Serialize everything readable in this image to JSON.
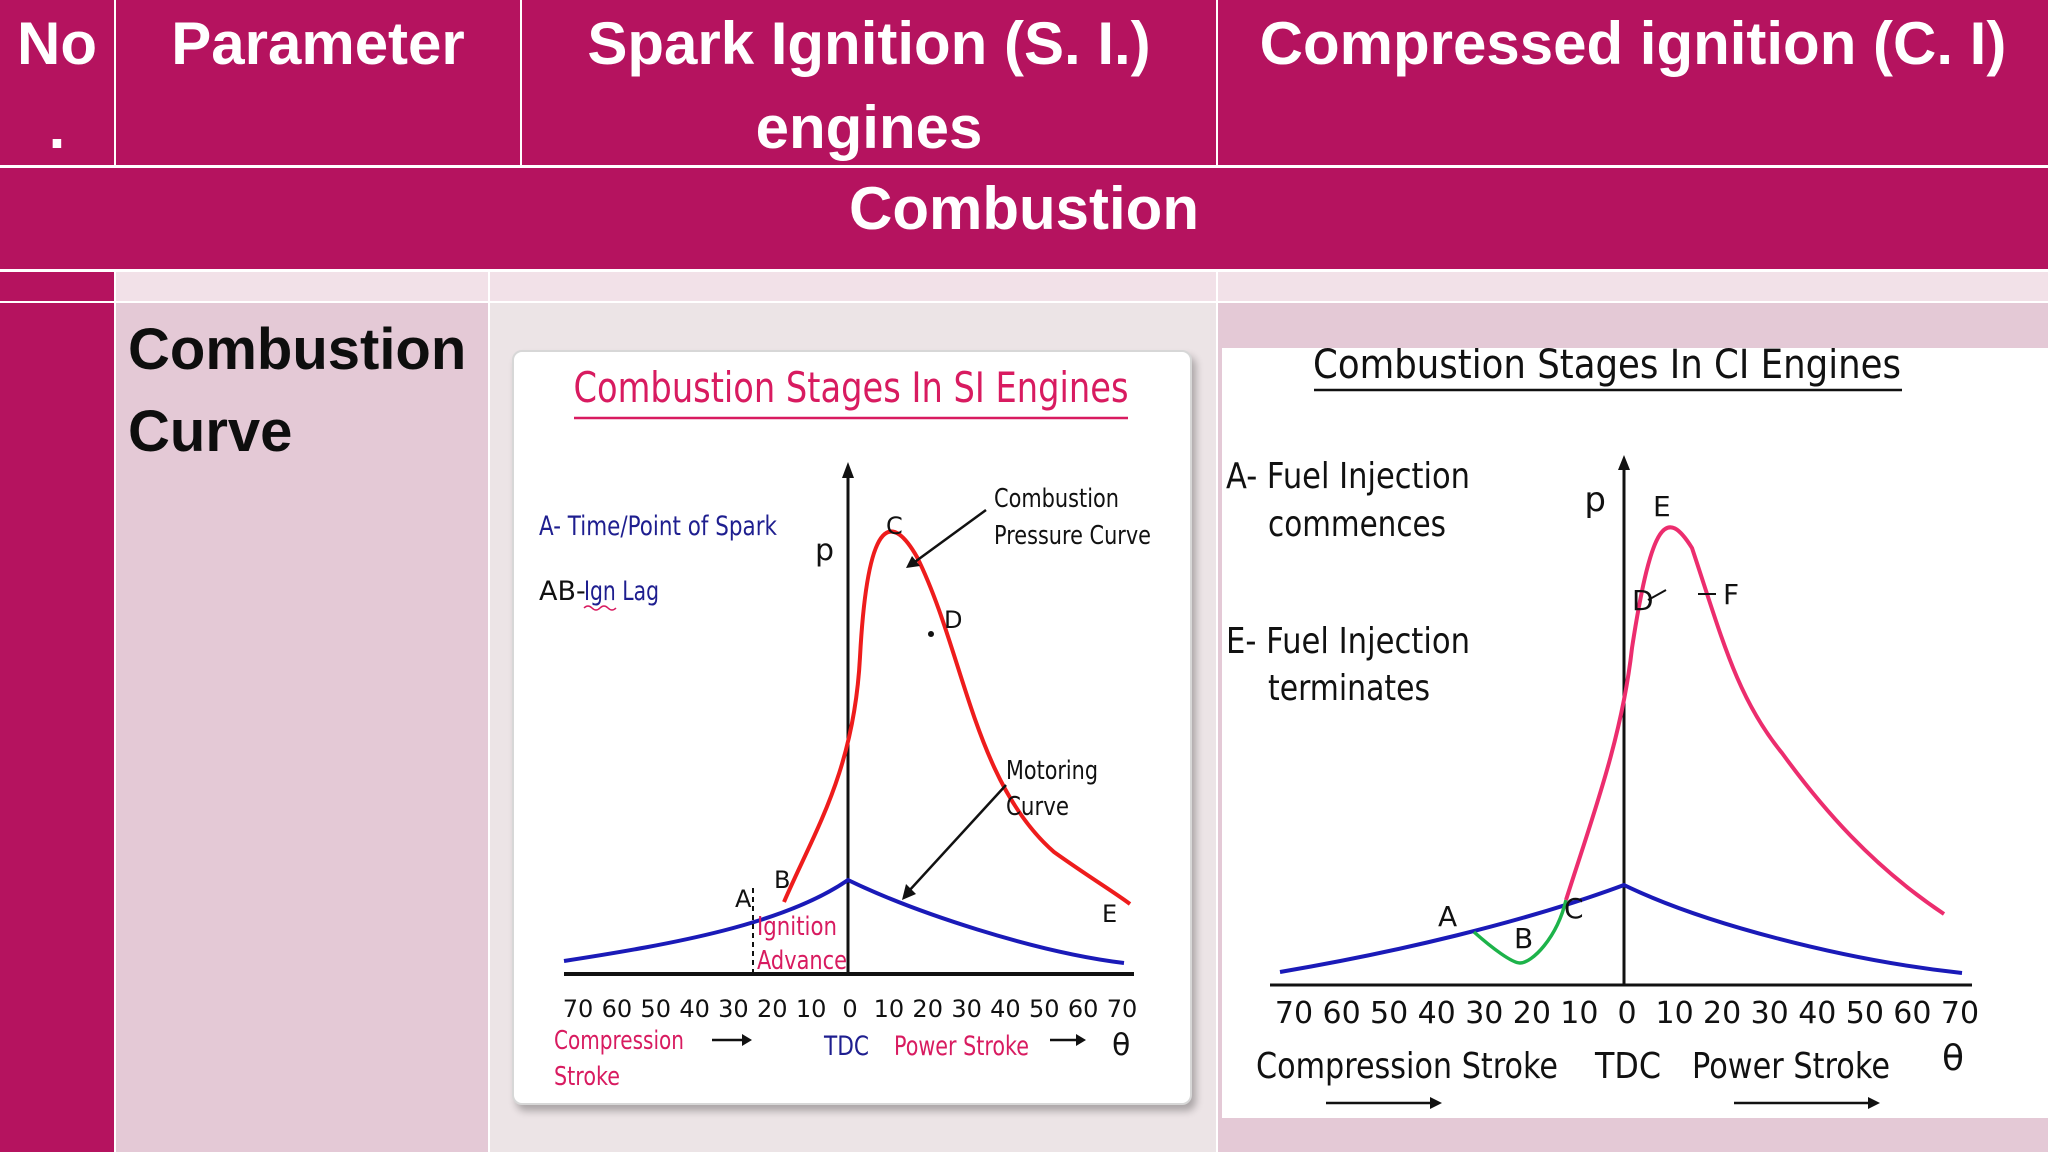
{
  "table": {
    "header": {
      "no": "No .",
      "no_line1": "No",
      "no_line2": ".",
      "parameter": "Parameter",
      "si_line1": "Spark Ignition (S. I.)",
      "si_line2": "engines",
      "ci": "Compressed ignition (C. I)"
    },
    "section_title": "Combustion",
    "row": {
      "parameter_line1": "Combustion",
      "parameter_line2": "Curve"
    }
  },
  "si_figure": {
    "title": "Combustion Stages In SI Engines",
    "legend_a": "A- Time/Point of Spark",
    "legend_ab_prefix": "AB-",
    "legend_ab_text": "Ign Lag",
    "p_label": "p",
    "combustion_label_1": "Combustion",
    "combustion_label_2": "Pressure Curve",
    "motoring_label_1": "Motoring",
    "motoring_label_2": "Curve",
    "points": {
      "a": "A",
      "b": "B",
      "c": "C",
      "d": "D",
      "e": "E"
    },
    "ignition_1": "Ignition",
    "ignition_2": "Advance",
    "ticks": [
      "70",
      "60",
      "50",
      "40",
      "30",
      "20",
      "10",
      "0",
      "10",
      "20",
      "30",
      "40",
      "50",
      "60",
      "70"
    ],
    "compression_1": "Compression",
    "compression_2": "Stroke",
    "tdc": "TDC",
    "power_stroke": "Power Stroke",
    "theta": "θ",
    "colors": {
      "combustion": "#ee1c1c",
      "motoring": "#1a1ab8",
      "title": "#d81b60"
    }
  },
  "ci_figure": {
    "title": "Combustion Stages In CI Engines",
    "a_line1": "A- Fuel Injection",
    "a_line2": "commences",
    "e_line1": "E- Fuel Injection",
    "e_line2": "terminates",
    "p_label": "p",
    "points": {
      "a": "A",
      "b": "B",
      "c": "C",
      "d": "D",
      "e": "E",
      "f": "F"
    },
    "ticks": [
      "70",
      "60",
      "50",
      "40",
      "30",
      "20",
      "10",
      "0",
      "10",
      "20",
      "30",
      "40",
      "50",
      "60",
      "70"
    ],
    "compression_stroke": "Compression Stroke",
    "tdc": "TDC",
    "power_stroke": "Power Stroke",
    "theta": "θ",
    "colors": {
      "combustion": "#ec2d6e",
      "motoring": "#1a1ab8",
      "delay": "#1db34a"
    }
  }
}
